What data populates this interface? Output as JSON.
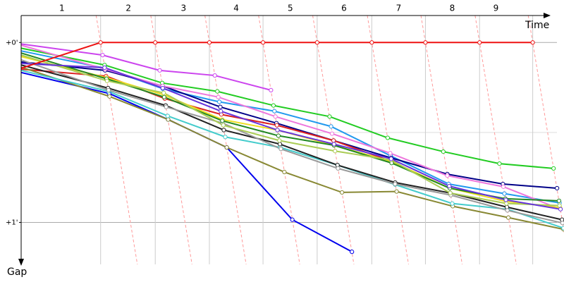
{
  "chart_data": {
    "type": "line",
    "xlabel": "Time",
    "ylabel": "Gap",
    "xlim": [
      0,
      1093
    ],
    "ylim": [
      -9,
      74
    ],
    "xticks": [
      {
        "value": 82,
        "label": "1"
      },
      {
        "value": 216,
        "label": "2"
      },
      {
        "value": 327,
        "label": "3"
      },
      {
        "value": 433,
        "label": "4"
      },
      {
        "value": 542,
        "label": "5"
      },
      {
        "value": 650,
        "label": "6"
      },
      {
        "value": 760,
        "label": "7"
      },
      {
        "value": 868,
        "label": "8"
      },
      {
        "value": 956,
        "label": "9"
      }
    ],
    "yticks": [
      {
        "value": 0,
        "label": "+0'"
      },
      {
        "value": 60,
        "label": "+1'"
      }
    ],
    "ygrid": [
      0,
      30,
      60
    ],
    "lap_lines": [
      160,
      270,
      379,
      487,
      596,
      706,
      814,
      923,
      1030
    ],
    "series": [
      {
        "color": "#0000ee",
        "x": [
          0,
          177,
          296,
          414,
          546,
          666
        ],
        "values": [
          10.0,
          17.0,
          25.7,
          35.0,
          59.1,
          69.8
        ]
      },
      {
        "color": "#cc44ee",
        "x": [
          0,
          164,
          279,
          390,
          503
        ],
        "values": [
          0.5,
          4.2,
          9.3,
          11.0,
          15.9
        ]
      },
      {
        "color": "#22cc22",
        "x": [
          0,
          168,
          284,
          395,
          508,
          621,
          738,
          850,
          963,
          1072
        ],
        "values": [
          1.9,
          7.5,
          13.5,
          16.3,
          21.0,
          24.7,
          31.8,
          36.4,
          40.4,
          42.0
        ]
      },
      {
        "color": "#2299ee",
        "x": [
          0,
          169,
          285,
          399,
          510,
          624,
          744,
          861,
          973,
          1084
        ],
        "values": [
          2.8,
          8.6,
          15.4,
          19.8,
          22.9,
          28.0,
          37.8,
          47.2,
          50.4,
          53.5
        ]
      },
      {
        "color": "#000088",
        "x": [
          0,
          169,
          285,
          401,
          514,
          629,
          745,
          858,
          970,
          1079
        ],
        "values": [
          6.5,
          9.3,
          14.5,
          21.5,
          26.9,
          32.7,
          38.5,
          43.9,
          47.2,
          48.6
        ]
      },
      {
        "color": "#ee77dd",
        "x": [
          0,
          169,
          285,
          397,
          512,
          626,
          743,
          858,
          971,
          1086
        ],
        "values": [
          0.9,
          8.9,
          14.5,
          18.2,
          24.7,
          30.4,
          36.9,
          44.4,
          48.1,
          55.6
        ]
      },
      {
        "color": "#dd2222",
        "x": [
          0,
          171,
          289,
          403,
          515,
          629,
          746
        ],
        "values": [
          8.9,
          11.2,
          18.7,
          24.0,
          27.6,
          32.7,
          39.7
        ]
      },
      {
        "color": "#eedd22",
        "x": [
          0,
          172,
          288,
          405,
          516,
          630,
          746,
          863,
          976,
          1085
        ],
        "values": [
          4.7,
          11.7,
          17.5,
          25.7,
          29.2,
          34.3,
          39.7,
          48.6,
          53.0,
          55.1
        ]
      },
      {
        "color": "#888833",
        "x": [
          0,
          178,
          296,
          414,
          530,
          646,
          756,
          869,
          981,
          1092
        ],
        "values": [
          8.2,
          18.0,
          25.7,
          35.0,
          43.2,
          50.0,
          49.7,
          54.6,
          58.4,
          62.3
        ]
      },
      {
        "color": "#44cccc",
        "x": [
          0,
          176,
          295,
          411,
          522,
          637,
          753,
          868,
          979,
          1092
        ],
        "values": [
          9.3,
          16.3,
          24.5,
          31.5,
          35.0,
          40.9,
          47.4,
          53.7,
          55.6,
          61.9
        ]
      },
      {
        "color": "#222222",
        "x": [
          0,
          175,
          291,
          408,
          521,
          637,
          753,
          864,
          978,
          1089
        ],
        "values": [
          7.5,
          15.2,
          21.0,
          29.2,
          33.9,
          40.9,
          46.7,
          50.2,
          54.9,
          59.1
        ]
      },
      {
        "color": "#999999",
        "x": [
          0,
          176,
          292,
          406,
          523,
          638,
          753,
          865,
          979,
          1090
        ],
        "values": [
          5.8,
          15.9,
          21.5,
          26.9,
          35.5,
          42.0,
          47.2,
          50.9,
          56.0,
          60.2
        ]
      },
      {
        "color": "#228822",
        "x": [
          0,
          172,
          288,
          405,
          518,
          630,
          746,
          863,
          975,
          1083
        ],
        "values": [
          3.5,
          12.1,
          18.2,
          26.1,
          31.1,
          34.3,
          40.2,
          48.6,
          52.1,
          52.8
        ]
      },
      {
        "color": "#aacc55",
        "x": [
          0,
          173,
          287,
          407,
          520,
          632,
          745,
          864,
          977,
          1084
        ],
        "values": [
          4.2,
          12.8,
          16.8,
          27.6,
          32.7,
          36.2,
          39.2,
          50.2,
          53.7,
          54.4
        ]
      },
      {
        "color": "#6633dd",
        "x": [
          0,
          168,
          285,
          402,
          516,
          630,
          745,
          862,
          976,
          1086
        ],
        "values": [
          7.0,
          8.4,
          15.2,
          22.9,
          29.2,
          33.9,
          38.8,
          47.9,
          52.5,
          55.6
        ]
      },
      {
        "color": "#ee1111",
        "x": [
          0,
          160,
          270,
          379,
          487,
          596,
          706,
          814,
          923,
          1030
        ],
        "values": [
          8.6,
          0,
          0,
          0,
          0,
          0,
          0,
          0,
          0,
          0
        ]
      }
    ]
  }
}
